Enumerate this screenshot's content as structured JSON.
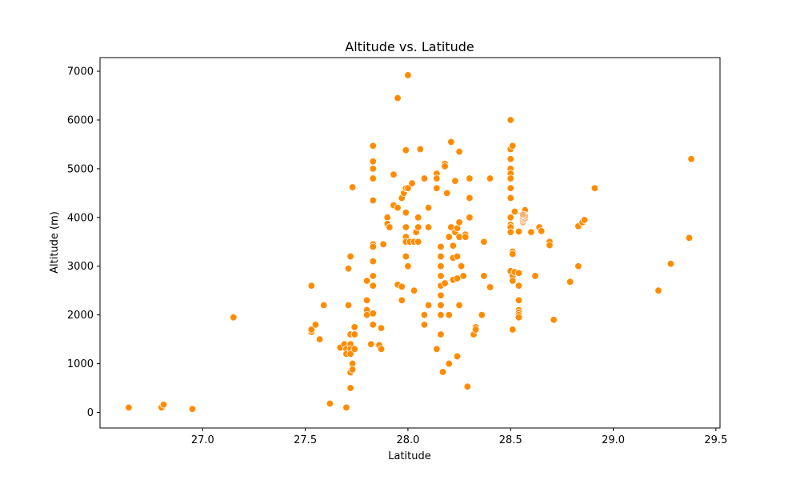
{
  "chart_data": {
    "type": "scatter",
    "title": "Altitude vs. Latitude",
    "xlabel": "Latitude",
    "ylabel": "Altitude (m)",
    "xlim": [
      26.5,
      29.52
    ],
    "ylim": [
      -320,
      7280
    ],
    "xticks": [
      27.0,
      27.5,
      28.0,
      28.5,
      29.0,
      29.5
    ],
    "xtick_labels": [
      "27.0",
      "27.5",
      "28.0",
      "28.5",
      "29.0",
      "29.5"
    ],
    "yticks": [
      0,
      1000,
      2000,
      3000,
      4000,
      5000,
      6000,
      7000
    ],
    "ytick_labels": [
      "0",
      "1000",
      "2000",
      "3000",
      "4000",
      "5000",
      "6000",
      "7000"
    ],
    "grid": false,
    "legend": false,
    "colors": {
      "point": "#ff8c00",
      "point_highlight": "#ffb070",
      "point_edge": "#ffffff",
      "axis": "#000000",
      "background": "#ffffff"
    },
    "series": [
      {
        "points": [
          [
            26.64,
            100
          ],
          [
            26.8,
            100
          ],
          [
            26.81,
            160
          ],
          [
            26.95,
            70
          ],
          [
            27.15,
            1950
          ],
          [
            27.53,
            2600
          ],
          [
            27.53,
            1650
          ],
          [
            27.53,
            1700
          ],
          [
            27.55,
            1800
          ],
          [
            27.57,
            1500
          ],
          [
            27.59,
            2200
          ],
          [
            27.62,
            180
          ],
          [
            27.67,
            1330
          ],
          [
            27.69,
            1400
          ],
          [
            27.7,
            1300
          ],
          [
            27.7,
            1200
          ],
          [
            27.7,
            100
          ],
          [
            27.71,
            2200
          ],
          [
            27.71,
            2950
          ],
          [
            27.72,
            3200
          ],
          [
            27.72,
            1400
          ],
          [
            27.72,
            1300
          ],
          [
            27.72,
            1200
          ],
          [
            27.72,
            500
          ],
          [
            27.72,
            820
          ],
          [
            27.72,
            1600
          ],
          [
            27.73,
            4620
          ],
          [
            27.73,
            1000
          ],
          [
            27.73,
            880
          ],
          [
            27.74,
            1750
          ],
          [
            27.74,
            1600
          ],
          [
            27.74,
            1300
          ],
          [
            27.8,
            2700
          ],
          [
            27.8,
            2300
          ],
          [
            27.8,
            2100
          ],
          [
            27.8,
            2000
          ],
          [
            27.82,
            1400
          ],
          [
            27.83,
            5470
          ],
          [
            27.83,
            5150
          ],
          [
            27.83,
            5000
          ],
          [
            27.83,
            4800
          ],
          [
            27.83,
            4350
          ],
          [
            27.83,
            3450
          ],
          [
            27.83,
            3400
          ],
          [
            27.83,
            3100
          ],
          [
            27.83,
            2800
          ],
          [
            27.83,
            2600
          ],
          [
            27.83,
            2030
          ],
          [
            27.83,
            1800
          ],
          [
            27.86,
            1380
          ],
          [
            27.87,
            1300
          ],
          [
            27.87,
            1730
          ],
          [
            27.88,
            3450
          ],
          [
            27.9,
            4000
          ],
          [
            27.9,
            3870
          ],
          [
            27.91,
            3800
          ],
          [
            27.93,
            4880
          ],
          [
            27.93,
            4250
          ],
          [
            27.95,
            6450
          ],
          [
            27.95,
            4200
          ],
          [
            27.95,
            2620
          ],
          [
            27.97,
            4400
          ],
          [
            27.97,
            2580
          ],
          [
            27.97,
            2300
          ],
          [
            27.98,
            4500
          ],
          [
            27.99,
            5380
          ],
          [
            27.99,
            4600
          ],
          [
            27.99,
            4100
          ],
          [
            27.99,
            3800
          ],
          [
            27.99,
            3600
          ],
          [
            27.99,
            3500
          ],
          [
            27.99,
            3200
          ],
          [
            28.0,
            6920
          ],
          [
            28.0,
            4600
          ],
          [
            28.0,
            3000
          ],
          [
            28.01,
            3500
          ],
          [
            28.02,
            4700
          ],
          [
            28.03,
            3500
          ],
          [
            28.03,
            2500
          ],
          [
            28.04,
            3700
          ],
          [
            28.05,
            4000
          ],
          [
            28.05,
            3800
          ],
          [
            28.05,
            3500
          ],
          [
            28.06,
            5400
          ],
          [
            28.08,
            4800
          ],
          [
            28.08,
            2000
          ],
          [
            28.08,
            1800
          ],
          [
            28.1,
            4200
          ],
          [
            28.1,
            3800
          ],
          [
            28.1,
            2200
          ],
          [
            28.14,
            4900
          ],
          [
            28.14,
            4800
          ],
          [
            28.14,
            4600
          ],
          [
            28.14,
            1300
          ],
          [
            28.16,
            3400
          ],
          [
            28.16,
            3200
          ],
          [
            28.16,
            3000
          ],
          [
            28.16,
            2800
          ],
          [
            28.16,
            2600
          ],
          [
            28.16,
            2400
          ],
          [
            28.16,
            2200
          ],
          [
            28.16,
            2000
          ],
          [
            28.16,
            1600
          ],
          [
            28.17,
            830
          ],
          [
            28.18,
            5100
          ],
          [
            28.18,
            5050
          ],
          [
            28.18,
            2650
          ],
          [
            28.19,
            4500
          ],
          [
            28.2,
            3600
          ],
          [
            28.2,
            2000
          ],
          [
            28.2,
            1000
          ],
          [
            28.21,
            5550
          ],
          [
            28.21,
            3800
          ],
          [
            28.22,
            3420
          ],
          [
            28.22,
            3170
          ],
          [
            28.22,
            2720
          ],
          [
            28.23,
            4750
          ],
          [
            28.23,
            3700
          ],
          [
            28.24,
            3780
          ],
          [
            28.24,
            3200
          ],
          [
            28.24,
            2750
          ],
          [
            28.24,
            1150
          ],
          [
            28.25,
            5350
          ],
          [
            28.25,
            3900
          ],
          [
            28.25,
            3600
          ],
          [
            28.25,
            2200
          ],
          [
            28.26,
            3000
          ],
          [
            28.27,
            2800
          ],
          [
            28.28,
            3650
          ],
          [
            28.28,
            3600
          ],
          [
            28.29,
            530
          ],
          [
            28.3,
            4800
          ],
          [
            28.3,
            4400
          ],
          [
            28.3,
            4000
          ],
          [
            28.32,
            1600
          ],
          [
            28.33,
            1750
          ],
          [
            28.33,
            1700
          ],
          [
            28.36,
            2000
          ],
          [
            28.37,
            3500
          ],
          [
            28.37,
            2800
          ],
          [
            28.4,
            4800
          ],
          [
            28.4,
            2570
          ],
          [
            28.5,
            6000
          ],
          [
            28.5,
            5400
          ],
          [
            28.5,
            5200
          ],
          [
            28.5,
            5000
          ],
          [
            28.5,
            4900
          ],
          [
            28.5,
            4800
          ],
          [
            28.5,
            4600
          ],
          [
            28.5,
            4400
          ],
          [
            28.5,
            4000
          ],
          [
            28.5,
            3850
          ],
          [
            28.5,
            3800
          ],
          [
            28.5,
            3700
          ],
          [
            28.5,
            2900
          ],
          [
            28.51,
            5470
          ],
          [
            28.51,
            3300
          ],
          [
            28.51,
            3250
          ],
          [
            28.51,
            2800
          ],
          [
            28.51,
            2700
          ],
          [
            28.51,
            1700
          ],
          [
            28.52,
            4120
          ],
          [
            28.52,
            2880
          ],
          [
            28.54,
            3720
          ],
          [
            28.54,
            3710
          ],
          [
            28.54,
            2860
          ],
          [
            28.54,
            2600
          ],
          [
            28.54,
            2300
          ],
          [
            28.54,
            2100
          ],
          [
            28.54,
            2050
          ],
          [
            28.54,
            2000
          ],
          [
            28.54,
            1950
          ],
          [
            28.57,
            4150
          ],
          [
            28.57,
            4050
          ],
          [
            28.6,
            3700
          ],
          [
            28.62,
            2800
          ],
          [
            28.64,
            3800
          ],
          [
            28.65,
            3720
          ],
          [
            28.69,
            3500
          ],
          [
            28.69,
            3430
          ],
          [
            28.71,
            1900
          ],
          [
            28.79,
            2680
          ],
          [
            28.83,
            3820
          ],
          [
            28.83,
            3000
          ],
          [
            28.85,
            3900
          ],
          [
            28.86,
            3950
          ],
          [
            28.91,
            4600
          ],
          [
            29.22,
            2500
          ],
          [
            29.28,
            3050
          ],
          [
            29.37,
            3580
          ],
          [
            29.38,
            5200
          ]
        ],
        "highlight_points": [
          [
            28.56,
            3900
          ],
          [
            28.56,
            3950
          ],
          [
            28.56,
            4000
          ],
          [
            28.57,
            3980
          ],
          [
            28.57,
            4030
          ],
          [
            28.56,
            4060
          ]
        ]
      }
    ]
  }
}
